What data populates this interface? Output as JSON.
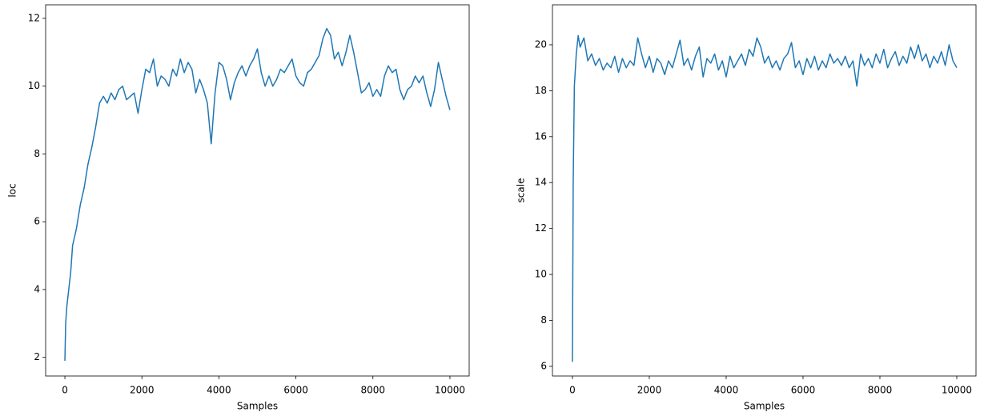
{
  "chart_data": [
    {
      "type": "line",
      "xlabel": "Samples",
      "ylabel": "loc",
      "xlim": [
        -500,
        10500
      ],
      "ylim": [
        1.45,
        12.4
      ],
      "xticks": [
        0,
        2000,
        4000,
        6000,
        8000,
        10000
      ],
      "yticks": [
        2,
        4,
        6,
        8,
        10,
        12
      ],
      "grid": false,
      "x": [
        0,
        20,
        50,
        100,
        150,
        200,
        300,
        400,
        500,
        600,
        700,
        800,
        900,
        1000,
        1100,
        1200,
        1300,
        1400,
        1500,
        1600,
        1700,
        1800,
        1900,
        2000,
        2100,
        2200,
        2300,
        2400,
        2500,
        2600,
        2700,
        2800,
        2900,
        3000,
        3100,
        3200,
        3300,
        3400,
        3500,
        3600,
        3700,
        3800,
        3900,
        4000,
        4100,
        4200,
        4300,
        4400,
        4500,
        4600,
        4700,
        4800,
        4900,
        5000,
        5100,
        5200,
        5300,
        5400,
        5500,
        5600,
        5700,
        5800,
        5900,
        6000,
        6100,
        6200,
        6300,
        6400,
        6500,
        6600,
        6700,
        6800,
        6900,
        7000,
        7100,
        7200,
        7300,
        7400,
        7500,
        7600,
        7700,
        7800,
        7900,
        8000,
        8100,
        8200,
        8300,
        8400,
        8500,
        8600,
        8700,
        8800,
        8900,
        9000,
        9100,
        9200,
        9300,
        9400,
        9500,
        9600,
        9700,
        9800,
        9900,
        10000
      ],
      "series": [
        {
          "color": "#1f77b4",
          "values": [
            1.9,
            3.0,
            3.5,
            4.0,
            4.5,
            5.3,
            5.8,
            6.5,
            7.0,
            7.7,
            8.2,
            8.8,
            9.5,
            9.7,
            9.5,
            9.8,
            9.6,
            9.9,
            10.0,
            9.6,
            9.7,
            9.8,
            9.2,
            9.9,
            10.5,
            10.4,
            10.8,
            10.0,
            10.3,
            10.2,
            10.0,
            10.5,
            10.3,
            10.8,
            10.4,
            10.7,
            10.5,
            9.8,
            10.2,
            9.9,
            9.5,
            8.3,
            9.8,
            10.7,
            10.6,
            10.2,
            9.6,
            10.1,
            10.4,
            10.6,
            10.3,
            10.6,
            10.8,
            11.1,
            10.4,
            10.0,
            10.3,
            10.0,
            10.2,
            10.5,
            10.4,
            10.6,
            10.8,
            10.3,
            10.1,
            10.0,
            10.4,
            10.5,
            10.7,
            10.9,
            11.4,
            11.7,
            11.5,
            10.8,
            11.0,
            10.6,
            11.0,
            11.5,
            11.0,
            10.4,
            9.8,
            9.9,
            10.1,
            9.7,
            9.9,
            9.7,
            10.3,
            10.6,
            10.4,
            10.5,
            9.9,
            9.6,
            9.9,
            10.0,
            10.3,
            10.1,
            10.3,
            9.8,
            9.4,
            9.9,
            10.7,
            10.2,
            9.7,
            9.3
          ]
        }
      ]
    },
    {
      "type": "line",
      "xlabel": "Samples",
      "ylabel": "scale",
      "xlim": [
        -520,
        10500
      ],
      "ylim": [
        5.58,
        21.74
      ],
      "xticks": [
        0,
        2000,
        4000,
        6000,
        8000,
        10000
      ],
      "yticks": [
        6,
        8,
        10,
        12,
        14,
        16,
        18,
        20
      ],
      "grid": false,
      "x": [
        0,
        20,
        50,
        100,
        150,
        200,
        300,
        400,
        500,
        600,
        700,
        800,
        900,
        1000,
        1100,
        1200,
        1300,
        1400,
        1500,
        1600,
        1700,
        1800,
        1900,
        2000,
        2100,
        2200,
        2300,
        2400,
        2500,
        2600,
        2700,
        2800,
        2900,
        3000,
        3100,
        3200,
        3300,
        3400,
        3500,
        3600,
        3700,
        3800,
        3900,
        4000,
        4100,
        4200,
        4300,
        4400,
        4500,
        4600,
        4700,
        4800,
        4900,
        5000,
        5100,
        5200,
        5300,
        5400,
        5500,
        5600,
        5700,
        5800,
        5900,
        6000,
        6100,
        6200,
        6300,
        6400,
        6500,
        6600,
        6700,
        6800,
        6900,
        7000,
        7100,
        7200,
        7300,
        7400,
        7500,
        7600,
        7700,
        7800,
        7900,
        8000,
        8100,
        8200,
        8300,
        8400,
        8500,
        8600,
        8700,
        8800,
        8900,
        9000,
        9100,
        9200,
        9300,
        9400,
        9500,
        9600,
        9700,
        9800,
        9900,
        10000
      ],
      "series": [
        {
          "color": "#1f77b4",
          "values": [
            6.2,
            14,
            18.2,
            19.6,
            20.4,
            19.9,
            20.3,
            19.3,
            19.6,
            19.1,
            19.4,
            18.9,
            19.2,
            19.0,
            19.5,
            18.8,
            19.4,
            19.0,
            19.3,
            19.1,
            20.3,
            19.6,
            19.0,
            19.5,
            18.8,
            19.4,
            19.2,
            18.7,
            19.3,
            19.0,
            19.6,
            20.2,
            19.1,
            19.4,
            18.9,
            19.5,
            19.9,
            18.6,
            19.4,
            19.2,
            19.6,
            18.9,
            19.3,
            18.6,
            19.5,
            19.0,
            19.3,
            19.6,
            19.1,
            19.8,
            19.5,
            20.3,
            19.9,
            19.2,
            19.5,
            19.0,
            19.3,
            18.9,
            19.4,
            19.6,
            20.1,
            19.0,
            19.3,
            18.7,
            19.4,
            19.0,
            19.5,
            18.9,
            19.3,
            19.0,
            19.6,
            19.2,
            19.4,
            19.1,
            19.5,
            19.0,
            19.3,
            18.2,
            19.6,
            19.1,
            19.4,
            19.0,
            19.6,
            19.2,
            19.8,
            19.0,
            19.4,
            19.7,
            19.1,
            19.5,
            19.2,
            19.9,
            19.4,
            20.0,
            19.3,
            19.6,
            19.0,
            19.5,
            19.2,
            19.7,
            19.1,
            20.0,
            19.3,
            19.0
          ]
        }
      ]
    }
  ]
}
